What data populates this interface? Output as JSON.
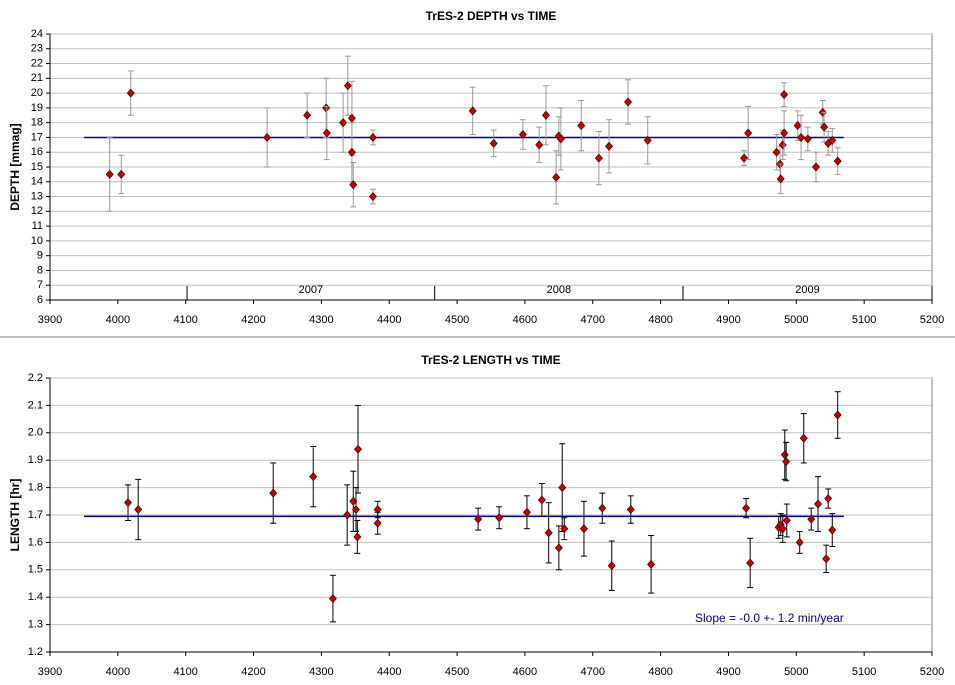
{
  "chart_data": [
    {
      "type": "scatter",
      "title": "TrES-2 DEPTH vs TIME",
      "ylabel": "DEPTH [mmag]",
      "xlim": [
        3900,
        5200
      ],
      "xticks": [
        3900,
        4000,
        4100,
        4200,
        4300,
        4400,
        4500,
        4600,
        4700,
        4800,
        4900,
        5000,
        5100,
        5200
      ],
      "ylim": [
        6,
        24
      ],
      "yticks": [
        6,
        7,
        8,
        9,
        10,
        11,
        12,
        13,
        14,
        15,
        16,
        17,
        18,
        19,
        20,
        21,
        22,
        23,
        24
      ],
      "grid": true,
      "color": "#cc0000",
      "error_color": "#999999",
      "x": [
        3988,
        4005,
        4019,
        4220,
        4279,
        4307,
        4308,
        4332,
        4339,
        4345,
        4345,
        4347,
        4376,
        4376,
        4523,
        4554,
        4597,
        4621,
        4631,
        4646,
        4650,
        4653,
        4683,
        4709,
        4724,
        4752,
        4781,
        4923,
        4929,
        4971,
        4976,
        4977,
        4980,
        4982,
        4982,
        5002,
        5007,
        5017,
        5029,
        5039,
        5041,
        5047,
        5053,
        5061
      ],
      "values": [
        14.5,
        14.5,
        20,
        17,
        18.5,
        19,
        17.3,
        18,
        20.5,
        18.3,
        16,
        13.8,
        17,
        13,
        18.8,
        16.6,
        17.2,
        16.5,
        18.5,
        14.3,
        17.1,
        16.9,
        17.8,
        15.6,
        16.4,
        19.4,
        16.8,
        15.6,
        17.3,
        16,
        15.2,
        14.2,
        16.5,
        17.3,
        19.9,
        17.8,
        17,
        16.9,
        15,
        18.7,
        17.7,
        16.6,
        16.8,
        15.4
      ],
      "errors": [
        2.5,
        1.3,
        1.5,
        2,
        1.5,
        2,
        1.8,
        2,
        2,
        2.5,
        2,
        1.5,
        0.5,
        0.5,
        1.6,
        0.9,
        1,
        1.2,
        2,
        1.8,
        1.3,
        2.1,
        1.7,
        1.8,
        1.8,
        1.5,
        1.6,
        0.5,
        1.8,
        1.2,
        1.2,
        1,
        1,
        1.5,
        0.8,
        1,
        1.5,
        0.8,
        1,
        0.8,
        1,
        0.8,
        0.8,
        0.9
      ],
      "fit_line": {
        "x": [
          3950,
          5070
        ],
        "y": [
          17,
          17
        ],
        "color": "#000080"
      },
      "year_markers": {
        "x": [
          4102,
          4467,
          4833,
          5200
        ],
        "labels": [
          "2007",
          "2008",
          "2009"
        ]
      }
    },
    {
      "type": "scatter",
      "title": "TrES-2 LENGTH vs TIME",
      "ylabel": "LENGTH [hr]",
      "xlim": [
        3900,
        5200
      ],
      "xticks": [
        3900,
        4000,
        4100,
        4200,
        4300,
        4400,
        4500,
        4600,
        4700,
        4800,
        4900,
        5000,
        5100,
        5200
      ],
      "ylim": [
        1.2,
        2.2
      ],
      "yticks": [
        1.2,
        1.3,
        1.4,
        1.5,
        1.6,
        1.7,
        1.8,
        1.9,
        {
          "value": 2,
          "label": "2.0"
        },
        2.1,
        2.2
      ],
      "grid": true,
      "color": "#cc0000",
      "error_color": "#000000",
      "x": [
        4015,
        4030,
        4229,
        4288,
        4317,
        4338,
        4347,
        4351,
        4353,
        4354,
        4383,
        4383,
        4531,
        4562,
        4603,
        4625,
        4635,
        4650,
        4655,
        4658,
        4687,
        4714,
        4728,
        4756,
        4786,
        4926,
        4932,
        4974,
        4977,
        4980,
        4983,
        4985,
        4986,
        5005,
        5011,
        5022,
        5032,
        5044,
        5047,
        5053,
        5061
      ],
      "values": [
        1.745,
        1.72,
        1.78,
        1.84,
        1.395,
        1.7,
        1.75,
        1.72,
        1.62,
        1.94,
        1.72,
        1.67,
        1.685,
        1.69,
        1.71,
        1.755,
        1.635,
        1.58,
        1.8,
        1.65,
        1.65,
        1.725,
        1.515,
        1.72,
        1.52,
        1.725,
        1.525,
        1.655,
        1.665,
        1.65,
        1.92,
        1.895,
        1.68,
        1.6,
        1.98,
        1.685,
        1.74,
        1.54,
        1.76,
        1.645,
        2.065
      ],
      "errors": [
        0.065,
        0.11,
        0.11,
        0.11,
        0.085,
        0.11,
        0.11,
        0.08,
        0.06,
        0.16,
        0.03,
        0.04,
        0.04,
        0.04,
        0.06,
        0.06,
        0.11,
        0.08,
        0.16,
        0.04,
        0.1,
        0.055,
        0.09,
        0.05,
        0.105,
        0.035,
        0.09,
        0.04,
        0.04,
        0.05,
        0.09,
        0.07,
        0.06,
        0.04,
        0.09,
        0.04,
        0.1,
        0.05,
        0.035,
        0.06,
        0.085
      ],
      "fit_line": {
        "x": [
          3950,
          5070
        ],
        "y": [
          1.695,
          1.695
        ],
        "color": "#000080"
      },
      "annotation": "Slope = -0.0 +- 1.2 min/year"
    }
  ]
}
